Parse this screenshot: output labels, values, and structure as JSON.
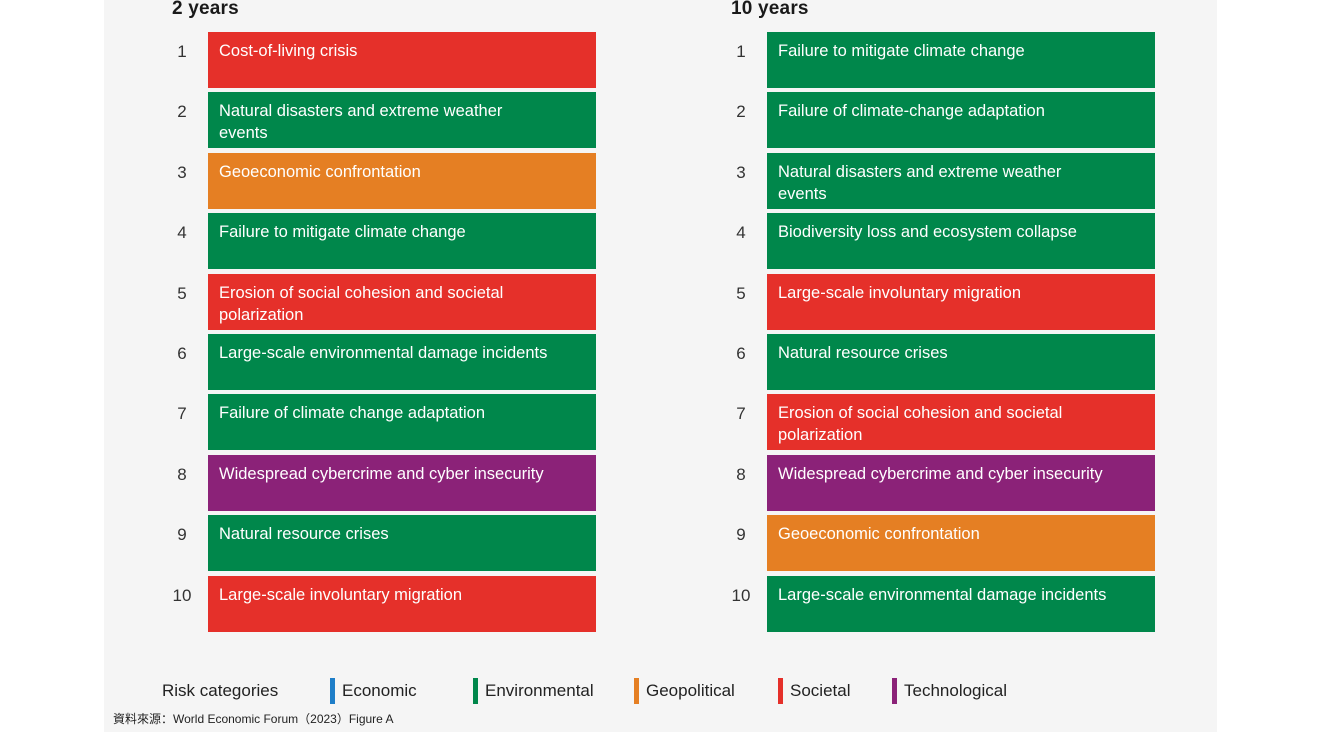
{
  "colors": {
    "Economic": "#1e7ec8",
    "Environmental": "#00874b",
    "Geopolitical": "#e57f23",
    "Societal": "#e5302a",
    "Technological": "#8b2278"
  },
  "chart_data": {
    "type": "table",
    "columns": [
      {
        "title": "2 years",
        "items": [
          {
            "rank": "1",
            "label": "Cost-of-living crisis",
            "category": "Societal"
          },
          {
            "rank": "2",
            "label": "Natural disasters and extreme weather events",
            "category": "Environmental"
          },
          {
            "rank": "3",
            "label": "Geoeconomic confrontation",
            "category": "Geopolitical"
          },
          {
            "rank": "4",
            "label": "Failure to mitigate climate change",
            "category": "Environmental"
          },
          {
            "rank": "5",
            "label": "Erosion of social cohesion and societal polarization",
            "category": "Societal"
          },
          {
            "rank": "6",
            "label": "Large-scale environmental damage incidents",
            "category": "Environmental"
          },
          {
            "rank": "7",
            "label": "Failure of climate change adaptation",
            "category": "Environmental"
          },
          {
            "rank": "8",
            "label": "Widespread cybercrime and cyber insecurity",
            "category": "Technological"
          },
          {
            "rank": "9",
            "label": "Natural resource crises",
            "category": "Environmental"
          },
          {
            "rank": "10",
            "label": "Large-scale involuntary migration",
            "category": "Societal"
          }
        ]
      },
      {
        "title": "10 years",
        "items": [
          {
            "rank": "1",
            "label": "Failure to mitigate climate change",
            "category": "Environmental"
          },
          {
            "rank": "2",
            "label": "Failure of climate-change adaptation",
            "category": "Environmental"
          },
          {
            "rank": "3",
            "label": "Natural disasters and extreme weather events",
            "category": "Environmental"
          },
          {
            "rank": "4",
            "label": "Biodiversity loss and ecosystem collapse",
            "category": "Environmental"
          },
          {
            "rank": "5",
            "label": "Large-scale involuntary migration",
            "category": "Societal"
          },
          {
            "rank": "6",
            "label": "Natural resource crises",
            "category": "Environmental"
          },
          {
            "rank": "7",
            "label": "Erosion of social cohesion and societal polarization",
            "category": "Societal"
          },
          {
            "rank": "8",
            "label": "Widespread cybercrime and cyber insecurity",
            "category": "Technological"
          },
          {
            "rank": "9",
            "label": "Geoeconomic confrontation",
            "category": "Geopolitical"
          },
          {
            "rank": "10",
            "label": "Large-scale environmental damage incidents",
            "category": "Environmental"
          }
        ]
      }
    ],
    "legend": {
      "title": "Risk categories",
      "items": [
        "Economic",
        "Environmental",
        "Geopolitical",
        "Societal",
        "Technological"
      ]
    }
  },
  "source": "資料來源：World Economic Forum（2023）Figure A"
}
